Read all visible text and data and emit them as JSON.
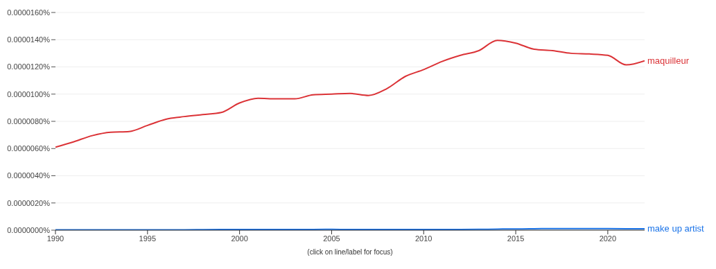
{
  "chart_data": {
    "type": "line",
    "x": [
      1990,
      1991,
      1992,
      1993,
      1994,
      1995,
      1996,
      1997,
      1998,
      1999,
      2000,
      2001,
      2002,
      2003,
      2004,
      2005,
      2006,
      2007,
      2008,
      2009,
      2010,
      2011,
      2012,
      2013,
      2014,
      2015,
      2016,
      2017,
      2018,
      2019,
      2020,
      2021,
      2022
    ],
    "series": [
      {
        "name": "maquilleur",
        "color": "#db3236",
        "values": [
          6.1e-06,
          6.5e-06,
          6.95e-06,
          7.2e-06,
          7.25e-06,
          7.7e-06,
          8.15e-06,
          8.35e-06,
          8.5e-06,
          8.65e-06,
          9.35e-06,
          9.7e-06,
          9.65e-06,
          9.65e-06,
          9.95e-06,
          1e-05,
          1.005e-05,
          9.9e-06,
          1.04e-05,
          1.13e-05,
          1.18e-05,
          1.24e-05,
          1.285e-05,
          1.32e-05,
          1.395e-05,
          1.375e-05,
          1.33e-05,
          1.32e-05,
          1.3e-05,
          1.295e-05,
          1.285e-05,
          1.215e-05,
          1.245e-05
        ]
      },
      {
        "name": "make up artist",
        "color": "#1a73e8",
        "values": [
          2e-08,
          2e-08,
          2e-08,
          2e-08,
          2e-08,
          3e-08,
          3e-08,
          3e-08,
          4e-08,
          5e-08,
          5e-08,
          5e-08,
          5e-08,
          5e-08,
          5e-08,
          6e-08,
          5e-08,
          5e-08,
          5e-08,
          5e-08,
          5e-08,
          5e-08,
          5e-08,
          6e-08,
          8e-08,
          9e-08,
          1e-07,
          1.2e-07,
          1.2e-07,
          1.2e-07,
          1.1e-07,
          1e-07,
          1e-07
        ]
      }
    ],
    "xlim": [
      1990,
      2022
    ],
    "xticks": [
      1990,
      1995,
      2000,
      2005,
      2010,
      2015,
      2020
    ],
    "ylim": [
      0,
      1.6e-05
    ],
    "yticks": [
      {
        "value": 0,
        "label": "0.0000000%"
      },
      {
        "value": 2e-06,
        "label": "0.0000020%"
      },
      {
        "value": 4e-06,
        "label": "0.0000040%"
      },
      {
        "value": 6e-06,
        "label": "0.0000060%"
      },
      {
        "value": 8e-06,
        "label": "0.0000080%"
      },
      {
        "value": 1e-05,
        "label": "0.0000100%"
      },
      {
        "value": 1.2e-05,
        "label": "0.0000120%"
      },
      {
        "value": 1.4e-05,
        "label": "0.0000140%"
      },
      {
        "value": 1.6e-05,
        "label": "0.0000160%"
      }
    ],
    "grid": "y",
    "legend": false,
    "marker": "none",
    "line_style": "solid",
    "annotations": [
      "(click on line/label for focus)"
    ]
  }
}
